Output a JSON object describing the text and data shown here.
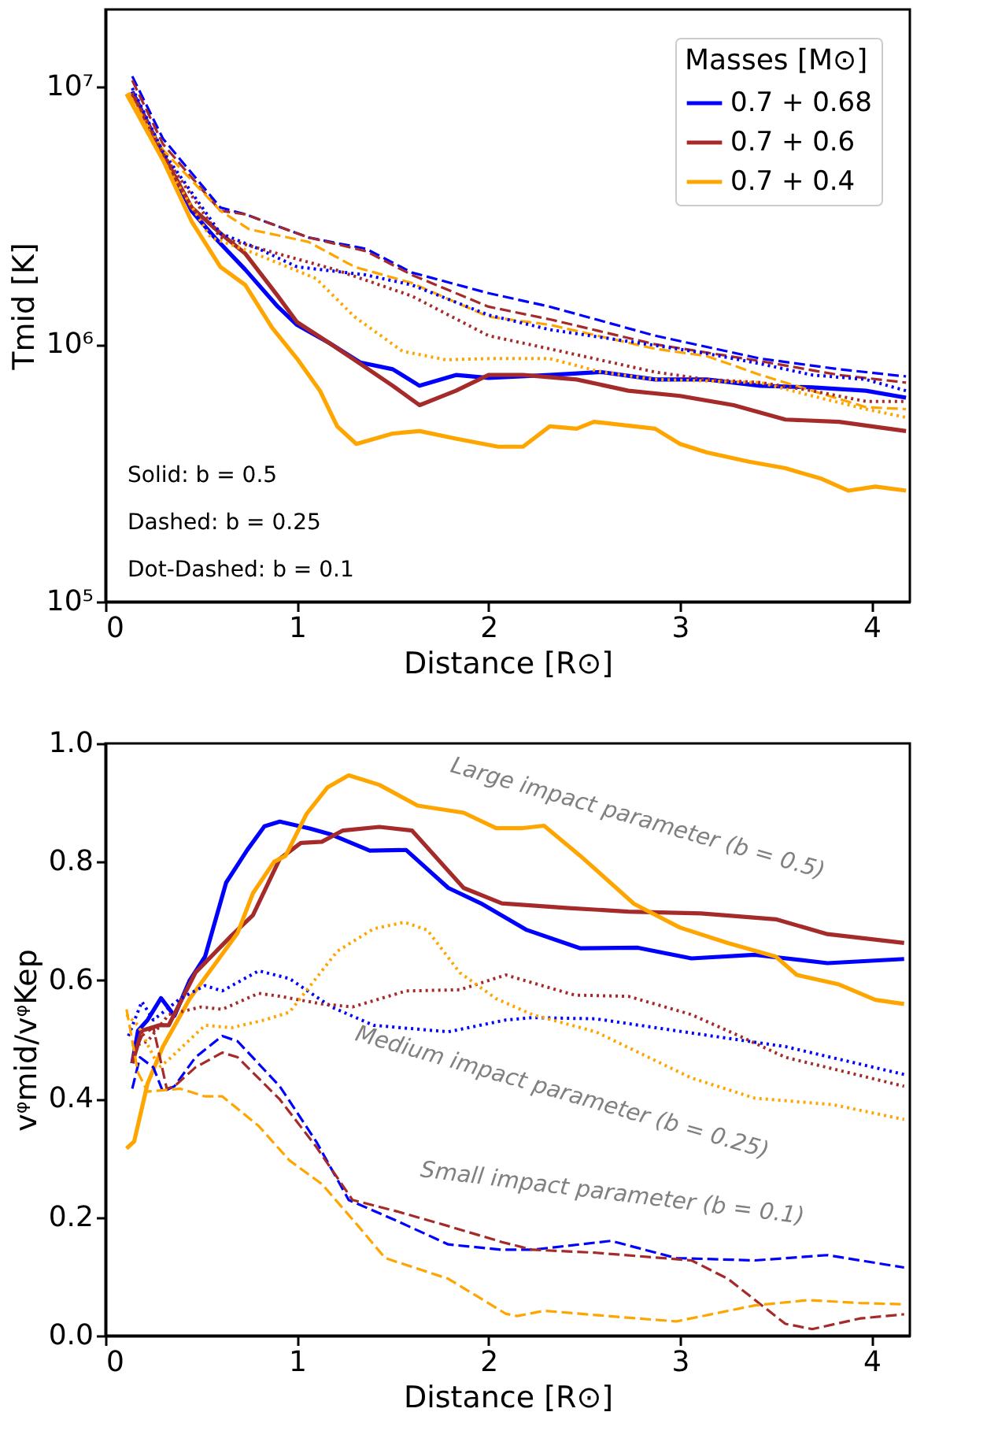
{
  "chart_data": [
    {
      "type": "line",
      "xlabel": "Distance [R⊙]",
      "ylabel": "Tmid [K]",
      "legend_title": "Masses [M⊙]",
      "legend": "top right",
      "log": "y",
      "grid": false,
      "xlim": [
        0,
        4.2
      ],
      "xticks": [
        0,
        1,
        2,
        3,
        4
      ],
      "ylim": [
        100000,
        20000000
      ],
      "yticks": [
        {
          "value": 100000,
          "label": "10⁵"
        },
        {
          "value": 1000000,
          "label": "10⁶"
        },
        {
          "value": 10000000,
          "label": "10⁷"
        }
      ],
      "annotations": [
        "Solid:           b = 0.5",
        "Dashed:          b = 0.25",
        "Dot-Dashed: b = 0.1"
      ],
      "series": [
        {
          "name": "0.7 + 0.68",
          "color": "#0000ff",
          "line_style": "solid",
          "x": [
            0.14,
            0.3,
            0.45,
            0.57,
            0.73,
            0.9,
            1.0,
            1.17,
            1.33,
            1.5,
            1.64,
            1.83,
            2.0,
            2.32,
            2.59,
            2.87,
            3.14,
            3.42,
            3.69,
            3.97,
            4.18
          ],
          "values": [
            9600000,
            5500000,
            3300000,
            2600000,
            1950000,
            1400000,
            1190000,
            1010000,
            850000,
            800000,
            690000,
            760000,
            740000,
            760000,
            780000,
            730000,
            730000,
            690000,
            680000,
            660000,
            620000
          ]
        },
        {
          "name": "0.7 + 0.6",
          "color": "#a52a2a",
          "line_style": "solid",
          "x": [
            0.14,
            0.3,
            0.45,
            0.6,
            0.73,
            0.9,
            1.0,
            1.17,
            1.33,
            1.5,
            1.64,
            1.83,
            2.0,
            2.18,
            2.46,
            2.73,
            3.0,
            3.28,
            3.55,
            3.83,
            4.18
          ],
          "values": [
            9400000,
            5500000,
            3400000,
            2700000,
            2250000,
            1540000,
            1220000,
            1010000,
            840000,
            690000,
            580000,
            660000,
            760000,
            760000,
            730000,
            660000,
            630000,
            580000,
            510000,
            500000,
            460000
          ]
        },
        {
          "name": "0.7 + 0.4",
          "color": "#ffa500",
          "line_style": "solid",
          "x": [
            0.11,
            0.3,
            0.45,
            0.6,
            0.73,
            0.87,
            1.0,
            1.12,
            1.21,
            1.31,
            1.5,
            1.64,
            1.83,
            2.05,
            2.18,
            2.32,
            2.46,
            2.55,
            2.87,
            3.0,
            3.14,
            3.36,
            3.55,
            3.74,
            3.88,
            4.02,
            4.18
          ],
          "values": [
            9400000,
            5200000,
            3000000,
            2000000,
            1700000,
            1160000,
            880000,
            660000,
            480000,
            410000,
            450000,
            460000,
            430000,
            400000,
            400000,
            480000,
            470000,
            500000,
            470000,
            410000,
            380000,
            350000,
            330000,
            300000,
            270000,
            280000,
            270000
          ]
        },
        {
          "color": "#0000ff",
          "line_style": "dashed",
          "x": [
            0.14,
            0.3,
            0.6,
            0.73,
            1.06,
            1.36,
            1.6,
            2.0,
            2.32,
            2.87,
            3.42,
            3.83,
            4.18
          ],
          "values": [
            11000000,
            6300000,
            3400000,
            3200000,
            2600000,
            2350000,
            1900000,
            1580000,
            1400000,
            1080000,
            880000,
            800000,
            750000
          ]
        },
        {
          "color": "#a52a2a",
          "line_style": "dashed",
          "x": [
            0.14,
            0.3,
            0.6,
            0.73,
            1.06,
            1.36,
            1.6,
            2.0,
            2.32,
            2.87,
            3.42,
            3.83,
            4.18
          ],
          "values": [
            10600000,
            6000000,
            3300000,
            3200000,
            2600000,
            2300000,
            1860000,
            1400000,
            1250000,
            1000000,
            860000,
            760000,
            710000
          ]
        },
        {
          "color": "#ffa500",
          "line_style": "dashed",
          "x": [
            0.12,
            0.3,
            0.6,
            0.75,
            1.06,
            1.3,
            1.6,
            2.0,
            2.32,
            2.87,
            3.14,
            3.42,
            3.69,
            3.97,
            4.18
          ],
          "values": [
            9400000,
            5700000,
            3300000,
            2800000,
            2500000,
            2000000,
            1730000,
            1280000,
            1190000,
            960000,
            900000,
            760000,
            660000,
            570000,
            560000
          ]
        },
        {
          "color": "#0000ff",
          "line_style": "dotted",
          "x": [
            0.14,
            0.3,
            0.6,
            0.8,
            1.0,
            1.36,
            1.6,
            2.0,
            2.32,
            2.87,
            3.14,
            3.42,
            3.69,
            3.97,
            4.18
          ],
          "values": [
            9900000,
            5600000,
            2700000,
            2350000,
            2000000,
            1860000,
            1700000,
            1300000,
            1140000,
            990000,
            920000,
            840000,
            760000,
            730000,
            660000
          ]
        },
        {
          "color": "#a52a2a",
          "line_style": "dotted",
          "x": [
            0.14,
            0.3,
            0.6,
            0.9,
            1.2,
            1.6,
            2.0,
            2.32,
            2.87,
            3.14,
            3.42,
            3.69,
            3.97,
            4.18
          ],
          "values": [
            9500000,
            5500000,
            2600000,
            2250000,
            1950000,
            1540000,
            1080000,
            960000,
            780000,
            730000,
            710000,
            660000,
            600000,
            600000
          ]
        },
        {
          "color": "#ffa500",
          "line_style": "dotted",
          "x": [
            0.12,
            0.3,
            0.55,
            0.75,
            1.1,
            1.3,
            1.55,
            1.78,
            2.0,
            2.32,
            2.59,
            2.87,
            3.42,
            3.69,
            3.97,
            4.18
          ],
          "values": [
            9500000,
            5200000,
            2600000,
            2300000,
            1800000,
            1280000,
            940000,
            870000,
            880000,
            880000,
            780000,
            730000,
            710000,
            630000,
            560000,
            520000
          ]
        }
      ]
    },
    {
      "type": "line",
      "xlabel": "Distance [R⊙]",
      "ylabel": "vᵠmid/vᵠKep",
      "grid": false,
      "xlim": [
        0,
        4.2
      ],
      "xticks": [
        0,
        1,
        2,
        3,
        4
      ],
      "ylim": [
        0,
        1
      ],
      "yticks": [
        {
          "value": 0,
          "label": "0.0"
        },
        {
          "value": 0.2,
          "label": "0.2"
        },
        {
          "value": 0.4,
          "label": "0.4"
        },
        {
          "value": 0.6,
          "label": "0.6"
        },
        {
          "value": 0.8,
          "label": "0.8"
        },
        {
          "value": 1,
          "label": "1.0"
        }
      ],
      "annotations": [
        "Large impact parameter (b = 0.5)",
        "Medium impact parameter (b = 0.25)",
        "Small impact parameter (b = 0.1)"
      ],
      "series": [
        {
          "color": "#0000ff",
          "line_style": "solid",
          "x": [
            0.14,
            0.17,
            0.22,
            0.29,
            0.36,
            0.44,
            0.52,
            0.63,
            0.74,
            0.83,
            0.91,
            1.07,
            1.18,
            1.38,
            1.57,
            1.79,
            1.96,
            2.2,
            2.48,
            2.78,
            3.06,
            3.39,
            3.77,
            4.17
          ],
          "values": [
            0.46,
            0.515,
            0.533,
            0.57,
            0.54,
            0.6,
            0.64,
            0.765,
            0.82,
            0.86,
            0.868,
            0.856,
            0.846,
            0.819,
            0.82,
            0.756,
            0.73,
            0.685,
            0.654,
            0.655,
            0.637,
            0.643,
            0.629,
            0.636
          ]
        },
        {
          "color": "#a52a2a",
          "line_style": "solid",
          "x": [
            0.14,
            0.19,
            0.28,
            0.33,
            0.47,
            0.66,
            0.77,
            0.91,
            1.02,
            1.13,
            1.24,
            1.43,
            1.6,
            1.87,
            2.07,
            2.42,
            2.73,
            3.11,
            3.5,
            3.77,
            4.17
          ],
          "values": [
            0.46,
            0.515,
            0.524,
            0.524,
            0.613,
            0.676,
            0.71,
            0.805,
            0.832,
            0.834,
            0.853,
            0.859,
            0.853,
            0.756,
            0.73,
            0.722,
            0.716,
            0.713,
            0.703,
            0.678,
            0.663
          ]
        },
        {
          "color": "#ffa500",
          "line_style": "solid",
          "x": [
            0.11,
            0.15,
            0.22,
            0.3,
            0.44,
            0.58,
            0.69,
            0.77,
            0.88,
            0.94,
            1.05,
            1.16,
            1.27,
            1.43,
            1.63,
            1.87,
            2.04,
            2.18,
            2.29,
            2.48,
            2.76,
            3.0,
            3.25,
            3.5,
            3.61,
            3.83,
            4.02,
            4.17
          ],
          "values": [
            0.316,
            0.328,
            0.426,
            0.488,
            0.569,
            0.631,
            0.68,
            0.747,
            0.8,
            0.81,
            0.881,
            0.926,
            0.946,
            0.93,
            0.895,
            0.883,
            0.857,
            0.857,
            0.861,
            0.81,
            0.729,
            0.689,
            0.663,
            0.64,
            0.609,
            0.593,
            0.567,
            0.56
          ]
        },
        {
          "color": "#0000ff",
          "line_style": "dotted",
          "x": [
            0.12,
            0.19,
            0.25,
            0.39,
            0.52,
            0.61,
            0.8,
            0.96,
            1.18,
            1.4,
            1.79,
            2.09,
            2.23,
            2.56,
            3.06,
            3.55,
            4.17
          ],
          "values": [
            0.506,
            0.564,
            0.533,
            0.569,
            0.591,
            0.582,
            0.616,
            0.603,
            0.555,
            0.524,
            0.513,
            0.533,
            0.537,
            0.535,
            0.511,
            0.488,
            0.441
          ]
        },
        {
          "color": "#a52a2a",
          "line_style": "dotted",
          "x": [
            0.14,
            0.22,
            0.33,
            0.5,
            0.61,
            0.8,
            0.91,
            1.13,
            1.29,
            1.57,
            1.85,
            2.09,
            2.45,
            2.73,
            3.06,
            3.31,
            3.55,
            3.83,
            4.17
          ],
          "values": [
            0.488,
            0.497,
            0.542,
            0.555,
            0.551,
            0.578,
            0.573,
            0.56,
            0.555,
            0.582,
            0.584,
            0.609,
            0.575,
            0.573,
            0.542,
            0.506,
            0.47,
            0.448,
            0.421
          ]
        },
        {
          "color": "#ffa500",
          "line_style": "dotted",
          "x": [
            0.11,
            0.17,
            0.28,
            0.33,
            0.52,
            0.66,
            0.83,
            0.96,
            1.07,
            1.21,
            1.4,
            1.56,
            1.68,
            1.85,
            2.04,
            2.23,
            2.56,
            3.06,
            3.39,
            3.8,
            4.17
          ],
          "values": [
            0.542,
            0.524,
            0.453,
            0.466,
            0.524,
            0.52,
            0.533,
            0.546,
            0.591,
            0.649,
            0.687,
            0.698,
            0.685,
            0.613,
            0.569,
            0.542,
            0.513,
            0.435,
            0.401,
            0.39,
            0.365
          ]
        },
        {
          "color": "#0000ff",
          "line_style": "dashed",
          "x": [
            0.14,
            0.18,
            0.25,
            0.3,
            0.36,
            0.47,
            0.61,
            0.69,
            0.91,
            1.1,
            1.27,
            1.52,
            1.79,
            2.07,
            2.23,
            2.64,
            2.98,
            3.39,
            3.77,
            4.17
          ],
          "values": [
            0.417,
            0.47,
            0.453,
            0.412,
            0.421,
            0.47,
            0.506,
            0.497,
            0.421,
            0.328,
            0.229,
            0.194,
            0.154,
            0.145,
            0.145,
            0.16,
            0.131,
            0.127,
            0.136,
            0.115
          ]
        },
        {
          "color": "#a52a2a",
          "line_style": "dashed",
          "x": [
            0.14,
            0.19,
            0.25,
            0.32,
            0.36,
            0.47,
            0.61,
            0.69,
            0.91,
            1.1,
            1.29,
            1.52,
            1.79,
            2.07,
            2.23,
            2.56,
            3.06,
            3.25,
            3.55,
            3.69,
            3.94,
            4.17
          ],
          "values": [
            0.47,
            0.506,
            0.52,
            0.417,
            0.421,
            0.453,
            0.478,
            0.47,
            0.399,
            0.319,
            0.229,
            0.21,
            0.185,
            0.158,
            0.145,
            0.14,
            0.127,
            0.096,
            0.02,
            0.011,
            0.029,
            0.036
          ]
        },
        {
          "color": "#ffa500",
          "line_style": "dashed",
          "x": [
            0.11,
            0.17,
            0.22,
            0.39,
            0.52,
            0.61,
            0.8,
            0.96,
            1.13,
            1.32,
            1.46,
            1.63,
            1.79,
            2.09,
            2.15,
            2.29,
            2.7,
            2.98,
            3.39,
            3.67,
            3.94,
            4.17
          ],
          "values": [
            0.551,
            0.444,
            0.412,
            0.417,
            0.404,
            0.404,
            0.354,
            0.296,
            0.256,
            0.185,
            0.131,
            0.113,
            0.096,
            0.037,
            0.033,
            0.042,
            0.031,
            0.024,
            0.051,
            0.06,
            0.055,
            0.053
          ]
        }
      ]
    }
  ]
}
